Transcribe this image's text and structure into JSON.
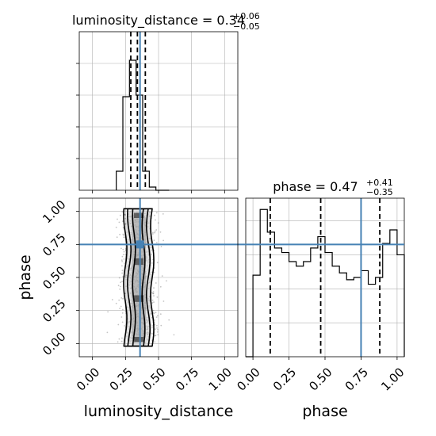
{
  "chart_data": [
    {
      "panel": "luminosity_distance-marginal",
      "type": "histogram",
      "title_param": "luminosity_distance",
      "title_value": "0.34",
      "title_plus": "+0.06",
      "title_minus": "−0.05",
      "xlim": [
        -0.1,
        1.1
      ],
      "bin_edges": [
        0.18,
        0.23,
        0.28,
        0.33,
        0.38,
        0.43,
        0.48,
        0.53,
        0.58
      ],
      "counts": [
        0.12,
        0.59,
        0.82,
        0.6,
        0.12,
        0.02,
        0.0,
        0.0
      ],
      "ylim": [
        0,
        1
      ],
      "quantile_lines": [
        0.29,
        0.34,
        0.4
      ],
      "truth": 0.36,
      "grid": true
    },
    {
      "panel": "phase-marginal",
      "type": "histogram",
      "title_param": "phase",
      "title_value": "0.47",
      "title_plus": "+0.41",
      "title_minus": "−0.35",
      "xlim": [
        -0.05,
        1.05
      ],
      "bin_edges": [
        -0.05,
        0.0,
        0.05,
        0.1,
        0.15,
        0.2,
        0.25,
        0.3,
        0.35,
        0.4,
        0.45,
        0.5,
        0.55,
        0.6,
        0.65,
        0.7,
        0.75,
        0.8,
        0.85,
        0.9,
        0.95,
        1.0,
        1.05
      ],
      "counts": [
        0.0,
        0.36,
        0.65,
        0.55,
        0.48,
        0.46,
        0.42,
        0.4,
        0.42,
        0.48,
        0.53,
        0.46,
        0.4,
        0.37,
        0.34,
        0.35,
        0.38,
        0.32,
        0.35,
        0.5,
        0.56,
        0.45
      ],
      "ylim": [
        0,
        0.7
      ],
      "quantile_lines": [
        0.12,
        0.47,
        0.88
      ],
      "truth": 0.75,
      "grid": true
    },
    {
      "panel": "joint-2d",
      "type": "scatter",
      "xlabel": "luminosity_distance",
      "ylabel": "phase",
      "xlim": [
        -0.1,
        1.1
      ],
      "ylim": [
        -0.1,
        1.1
      ],
      "x_ticks": [
        "0.00",
        "0.25",
        "0.50",
        "0.75",
        "1.00"
      ],
      "y_ticks": [
        "0.00",
        "0.25",
        "0.50",
        "0.75",
        "1.00"
      ],
      "x_tick_values": [
        0,
        0.25,
        0.5,
        0.75,
        1.0
      ],
      "y_tick_values": [
        0,
        0.25,
        0.5,
        0.75,
        1.0
      ],
      "sample_cloud": {
        "x_center": 0.35,
        "x_spread": 0.07,
        "y_min": 0.0,
        "y_max": 1.0
      },
      "truth": {
        "x": 0.36,
        "y": 0.75
      },
      "grid": true
    }
  ],
  "bottom_axis_labels": {
    "luminosity_distance": "luminosity_distance",
    "phase": "phase"
  },
  "phase_x_ticks": [
    "0.00",
    "0.25",
    "0.50",
    "0.75",
    "1.00"
  ],
  "phase_x_tick_values": [
    0,
    0.25,
    0.5,
    0.75,
    1.0
  ],
  "colors": {
    "truth": "#4682b4",
    "line": "#000000",
    "grid": "#b0b0b0",
    "point": "#555555"
  }
}
